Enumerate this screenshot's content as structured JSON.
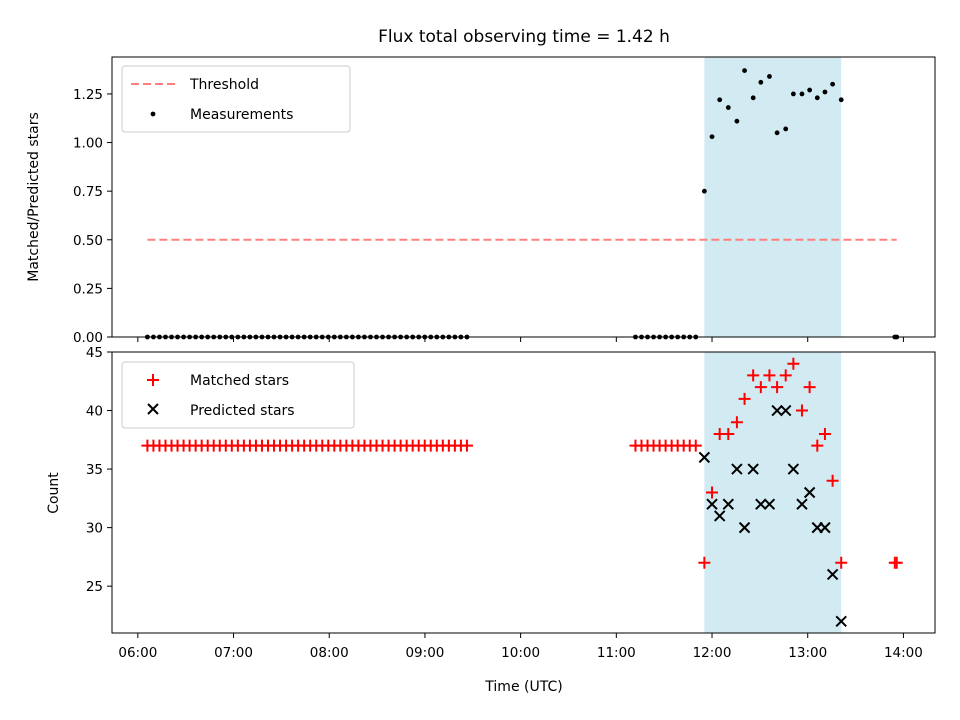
{
  "title": "Flux total observing time = 1.42 h",
  "colors": {
    "threshold": "#ff7f7f",
    "measurement": "#000000",
    "matched": "#ff0000",
    "predicted": "#000000",
    "span": "#add8e6"
  },
  "chart_data": [
    {
      "type": "scatter",
      "ylabel": "Matched/Predicted stars",
      "xlim": [
        5.73,
        14.33
      ],
      "ylim": [
        0,
        1.44
      ],
      "yticks": [
        0.0,
        0.25,
        0.5,
        0.75,
        1.0,
        1.25
      ],
      "ytick_labels": [
        "0.00",
        "0.25",
        "0.50",
        "0.75",
        "1.00",
        "1.25"
      ],
      "legend": {
        "position": "top-left",
        "entries": [
          "Threshold",
          "Measurements"
        ]
      },
      "threshold": {
        "name": "Threshold",
        "value": 0.5,
        "x_range": [
          6.1,
          13.93
        ]
      },
      "span": [
        11.92,
        13.35
      ],
      "series": [
        {
          "name": "Measurements",
          "points": [
            [
              6.1,
              0
            ],
            [
              6.163,
              0
            ],
            [
              6.226,
              0
            ],
            [
              6.289,
              0
            ],
            [
              6.352,
              0
            ],
            [
              6.415,
              0
            ],
            [
              6.478,
              0
            ],
            [
              6.541,
              0
            ],
            [
              6.604,
              0
            ],
            [
              6.667,
              0
            ],
            [
              6.73,
              0
            ],
            [
              6.793,
              0
            ],
            [
              6.856,
              0
            ],
            [
              6.919,
              0
            ],
            [
              6.982,
              0
            ],
            [
              7.045,
              0
            ],
            [
              7.108,
              0
            ],
            [
              7.171,
              0
            ],
            [
              7.234,
              0
            ],
            [
              7.297,
              0
            ],
            [
              7.36,
              0
            ],
            [
              7.423,
              0
            ],
            [
              7.486,
              0
            ],
            [
              7.549,
              0
            ],
            [
              7.612,
              0
            ],
            [
              7.675,
              0
            ],
            [
              7.738,
              0
            ],
            [
              7.801,
              0
            ],
            [
              7.864,
              0
            ],
            [
              7.927,
              0
            ],
            [
              7.99,
              0
            ],
            [
              8.053,
              0
            ],
            [
              8.116,
              0
            ],
            [
              8.179,
              0
            ],
            [
              8.242,
              0
            ],
            [
              8.305,
              0
            ],
            [
              8.368,
              0
            ],
            [
              8.431,
              0
            ],
            [
              8.494,
              0
            ],
            [
              8.557,
              0
            ],
            [
              8.62,
              0
            ],
            [
              8.683,
              0
            ],
            [
              8.746,
              0
            ],
            [
              8.809,
              0
            ],
            [
              8.872,
              0
            ],
            [
              8.935,
              0
            ],
            [
              8.998,
              0
            ],
            [
              9.061,
              0
            ],
            [
              9.124,
              0
            ],
            [
              9.187,
              0
            ],
            [
              9.25,
              0
            ],
            [
              9.313,
              0
            ],
            [
              9.376,
              0
            ],
            [
              9.439,
              0
            ],
            [
              11.2,
              0
            ],
            [
              11.263,
              0
            ],
            [
              11.326,
              0
            ],
            [
              11.389,
              0
            ],
            [
              11.452,
              0
            ],
            [
              11.515,
              0
            ],
            [
              11.578,
              0
            ],
            [
              11.641,
              0
            ],
            [
              11.704,
              0
            ],
            [
              11.767,
              0
            ],
            [
              11.83,
              0
            ],
            [
              11.92,
              0.75
            ],
            [
              12.0,
              1.03
            ],
            [
              12.08,
              1.22
            ],
            [
              12.17,
              1.18
            ],
            [
              12.26,
              1.11
            ],
            [
              12.34,
              1.37
            ],
            [
              12.43,
              1.23
            ],
            [
              12.51,
              1.31
            ],
            [
              12.6,
              1.34
            ],
            [
              12.68,
              1.05
            ],
            [
              12.77,
              1.07
            ],
            [
              12.85,
              1.25
            ],
            [
              12.94,
              1.25
            ],
            [
              13.02,
              1.27
            ],
            [
              13.1,
              1.23
            ],
            [
              13.18,
              1.26
            ],
            [
              13.26,
              1.3
            ],
            [
              13.35,
              1.22
            ],
            [
              13.91,
              0
            ],
            [
              13.93,
              0
            ]
          ]
        }
      ]
    },
    {
      "type": "scatter",
      "xlabel": "Time (UTC)",
      "ylabel": "Count",
      "xlim": [
        5.73,
        14.33
      ],
      "ylim": [
        21,
        45
      ],
      "yticks": [
        25,
        30,
        35,
        40,
        45
      ],
      "ytick_labels": [
        "25",
        "30",
        "35",
        "40",
        "45"
      ],
      "xticks": [
        6,
        7,
        8,
        9,
        10,
        11,
        12,
        13,
        14
      ],
      "xtick_labels": [
        "06:00",
        "07:00",
        "08:00",
        "09:00",
        "10:00",
        "11:00",
        "12:00",
        "13:00",
        "14:00"
      ],
      "legend": {
        "position": "top-left",
        "entries": [
          "Matched stars",
          "Predicted stars"
        ]
      },
      "span": [
        11.92,
        13.35
      ],
      "series": [
        {
          "name": "Matched stars",
          "marker": "plus",
          "points": [
            [
              6.1,
              37
            ],
            [
              6.163,
              37
            ],
            [
              6.226,
              37
            ],
            [
              6.289,
              37
            ],
            [
              6.352,
              37
            ],
            [
              6.415,
              37
            ],
            [
              6.478,
              37
            ],
            [
              6.541,
              37
            ],
            [
              6.604,
              37
            ],
            [
              6.667,
              37
            ],
            [
              6.73,
              37
            ],
            [
              6.793,
              37
            ],
            [
              6.856,
              37
            ],
            [
              6.919,
              37
            ],
            [
              6.982,
              37
            ],
            [
              7.045,
              37
            ],
            [
              7.108,
              37
            ],
            [
              7.171,
              37
            ],
            [
              7.234,
              37
            ],
            [
              7.297,
              37
            ],
            [
              7.36,
              37
            ],
            [
              7.423,
              37
            ],
            [
              7.486,
              37
            ],
            [
              7.549,
              37
            ],
            [
              7.612,
              37
            ],
            [
              7.675,
              37
            ],
            [
              7.738,
              37
            ],
            [
              7.801,
              37
            ],
            [
              7.864,
              37
            ],
            [
              7.927,
              37
            ],
            [
              7.99,
              37
            ],
            [
              8.053,
              37
            ],
            [
              8.116,
              37
            ],
            [
              8.179,
              37
            ],
            [
              8.242,
              37
            ],
            [
              8.305,
              37
            ],
            [
              8.368,
              37
            ],
            [
              8.431,
              37
            ],
            [
              8.494,
              37
            ],
            [
              8.557,
              37
            ],
            [
              8.62,
              37
            ],
            [
              8.683,
              37
            ],
            [
              8.746,
              37
            ],
            [
              8.809,
              37
            ],
            [
              8.872,
              37
            ],
            [
              8.935,
              37
            ],
            [
              8.998,
              37
            ],
            [
              9.061,
              37
            ],
            [
              9.124,
              37
            ],
            [
              9.187,
              37
            ],
            [
              9.25,
              37
            ],
            [
              9.313,
              37
            ],
            [
              9.376,
              37
            ],
            [
              9.439,
              37
            ],
            [
              11.2,
              37
            ],
            [
              11.263,
              37
            ],
            [
              11.326,
              37
            ],
            [
              11.389,
              37
            ],
            [
              11.452,
              37
            ],
            [
              11.515,
              37
            ],
            [
              11.578,
              37
            ],
            [
              11.641,
              37
            ],
            [
              11.704,
              37
            ],
            [
              11.767,
              37
            ],
            [
              11.83,
              37
            ],
            [
              11.92,
              27
            ],
            [
              12.0,
              33
            ],
            [
              12.08,
              38
            ],
            [
              12.17,
              38
            ],
            [
              12.26,
              39
            ],
            [
              12.34,
              41
            ],
            [
              12.43,
              43
            ],
            [
              12.51,
              42
            ],
            [
              12.6,
              43
            ],
            [
              12.68,
              42
            ],
            [
              12.77,
              43
            ],
            [
              12.85,
              44
            ],
            [
              12.94,
              40
            ],
            [
              13.02,
              42
            ],
            [
              13.1,
              37
            ],
            [
              13.18,
              38
            ],
            [
              13.26,
              34
            ],
            [
              13.35,
              27
            ],
            [
              13.91,
              27
            ],
            [
              13.93,
              27
            ]
          ]
        },
        {
          "name": "Predicted stars",
          "marker": "x",
          "points": [
            [
              11.92,
              36
            ],
            [
              12.0,
              32
            ],
            [
              12.08,
              31
            ],
            [
              12.17,
              32
            ],
            [
              12.26,
              35
            ],
            [
              12.34,
              30
            ],
            [
              12.43,
              35
            ],
            [
              12.51,
              32
            ],
            [
              12.6,
              32
            ],
            [
              12.68,
              40
            ],
            [
              12.77,
              40
            ],
            [
              12.85,
              35
            ],
            [
              12.94,
              32
            ],
            [
              13.02,
              33
            ],
            [
              13.1,
              30
            ],
            [
              13.18,
              30
            ],
            [
              13.26,
              26
            ],
            [
              13.35,
              22
            ]
          ]
        }
      ]
    }
  ]
}
